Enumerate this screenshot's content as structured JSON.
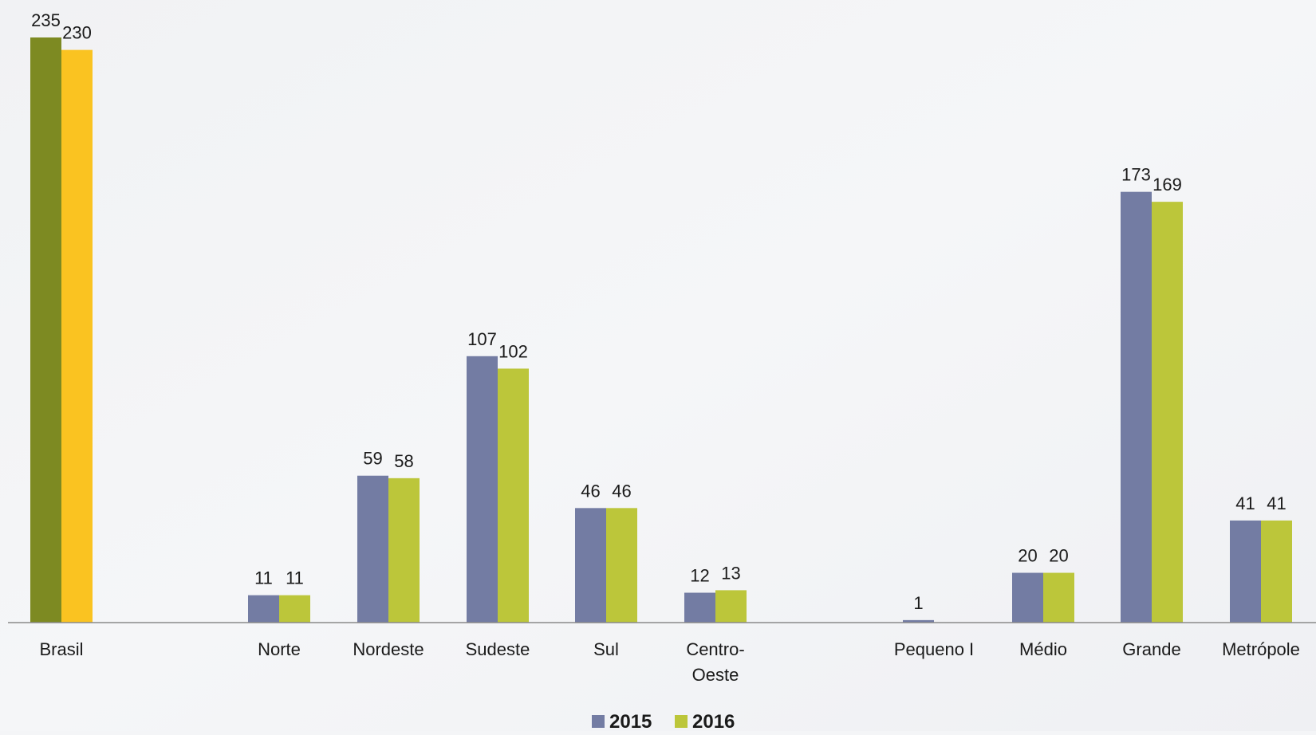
{
  "chart_data": {
    "type": "bar",
    "title": "",
    "xlabel": "",
    "ylabel": "",
    "ylim": [
      0,
      235
    ],
    "grid": false,
    "legend_position": "bottom-center",
    "categories": [
      "Brasil",
      "Norte",
      "Nordeste",
      "Sudeste",
      "Sul",
      "Centro-Oeste",
      "Pequeno I",
      "Médio",
      "Grande",
      "Metrópole"
    ],
    "category_display": [
      [
        "Brasil"
      ],
      [
        "Norte"
      ],
      [
        "Nordeste"
      ],
      [
        "Sudeste"
      ],
      [
        "Sul"
      ],
      [
        "Centro-",
        "Oeste"
      ],
      [
        "Pequeno I"
      ],
      [
        "Médio"
      ],
      [
        "Grande"
      ],
      [
        "Metrópole"
      ]
    ],
    "series": [
      {
        "name": "2015",
        "color": "#737ca3",
        "values": [
          235,
          11,
          59,
          107,
          46,
          12,
          1,
          20,
          173,
          41
        ],
        "labels": [
          "235",
          "11",
          "59",
          "107",
          "46",
          "12",
          "1",
          "20",
          "173",
          "41"
        ]
      },
      {
        "name": "2016",
        "color": "#bcc63a",
        "values": [
          230,
          11,
          58,
          102,
          46,
          13,
          0,
          20,
          169,
          41
        ],
        "labels": [
          "230",
          "11",
          "58",
          "102",
          "46",
          "13",
          "",
          "20",
          "169",
          "41"
        ]
      }
    ],
    "highlight_colors": {
      "Brasil": [
        "#7d8a22",
        "#fac321"
      ]
    }
  }
}
